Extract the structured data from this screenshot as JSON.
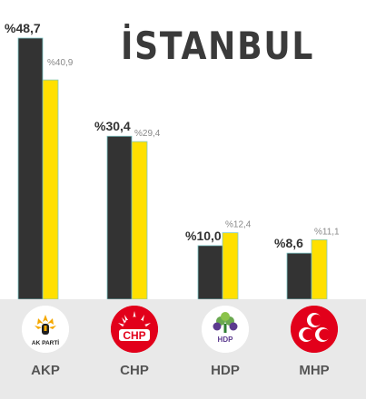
{
  "chart_data": {
    "type": "bar",
    "title": "İSTANBUL",
    "categories": [
      "AKP",
      "CHP",
      "HDP",
      "MHP"
    ],
    "series": [
      {
        "color": "#333333",
        "values": [
          48.7,
          30.4,
          10.0,
          8.6
        ],
        "labels": [
          "%48,7",
          "%30,4",
          "%10,0",
          "%8,6"
        ]
      },
      {
        "color": "#ffe000",
        "values": [
          40.9,
          29.4,
          12.4,
          11.1
        ],
        "labels": [
          "%40,9",
          "%29,4",
          "%12,4",
          "%11,1"
        ]
      }
    ],
    "ylim": [
      0,
      48.7
    ],
    "grid": false,
    "legend": "none"
  },
  "logos": [
    {
      "party": "AKP",
      "icon": "akp-logo-icon",
      "text": "AK PARTİ",
      "bg": "#ffffff",
      "accent": "#f5a800"
    },
    {
      "party": "CHP",
      "icon": "chp-logo-icon",
      "text": "CHP",
      "bg": "#e2001a",
      "accent": "#ffffff"
    },
    {
      "party": "HDP",
      "icon": "hdp-logo-icon",
      "text": "HDP",
      "bg": "#ffffff",
      "accent": "#5b3a8e"
    },
    {
      "party": "MHP",
      "icon": "mhp-logo-icon",
      "text": "",
      "bg": "#e2001a",
      "accent": "#ffffff"
    }
  ]
}
